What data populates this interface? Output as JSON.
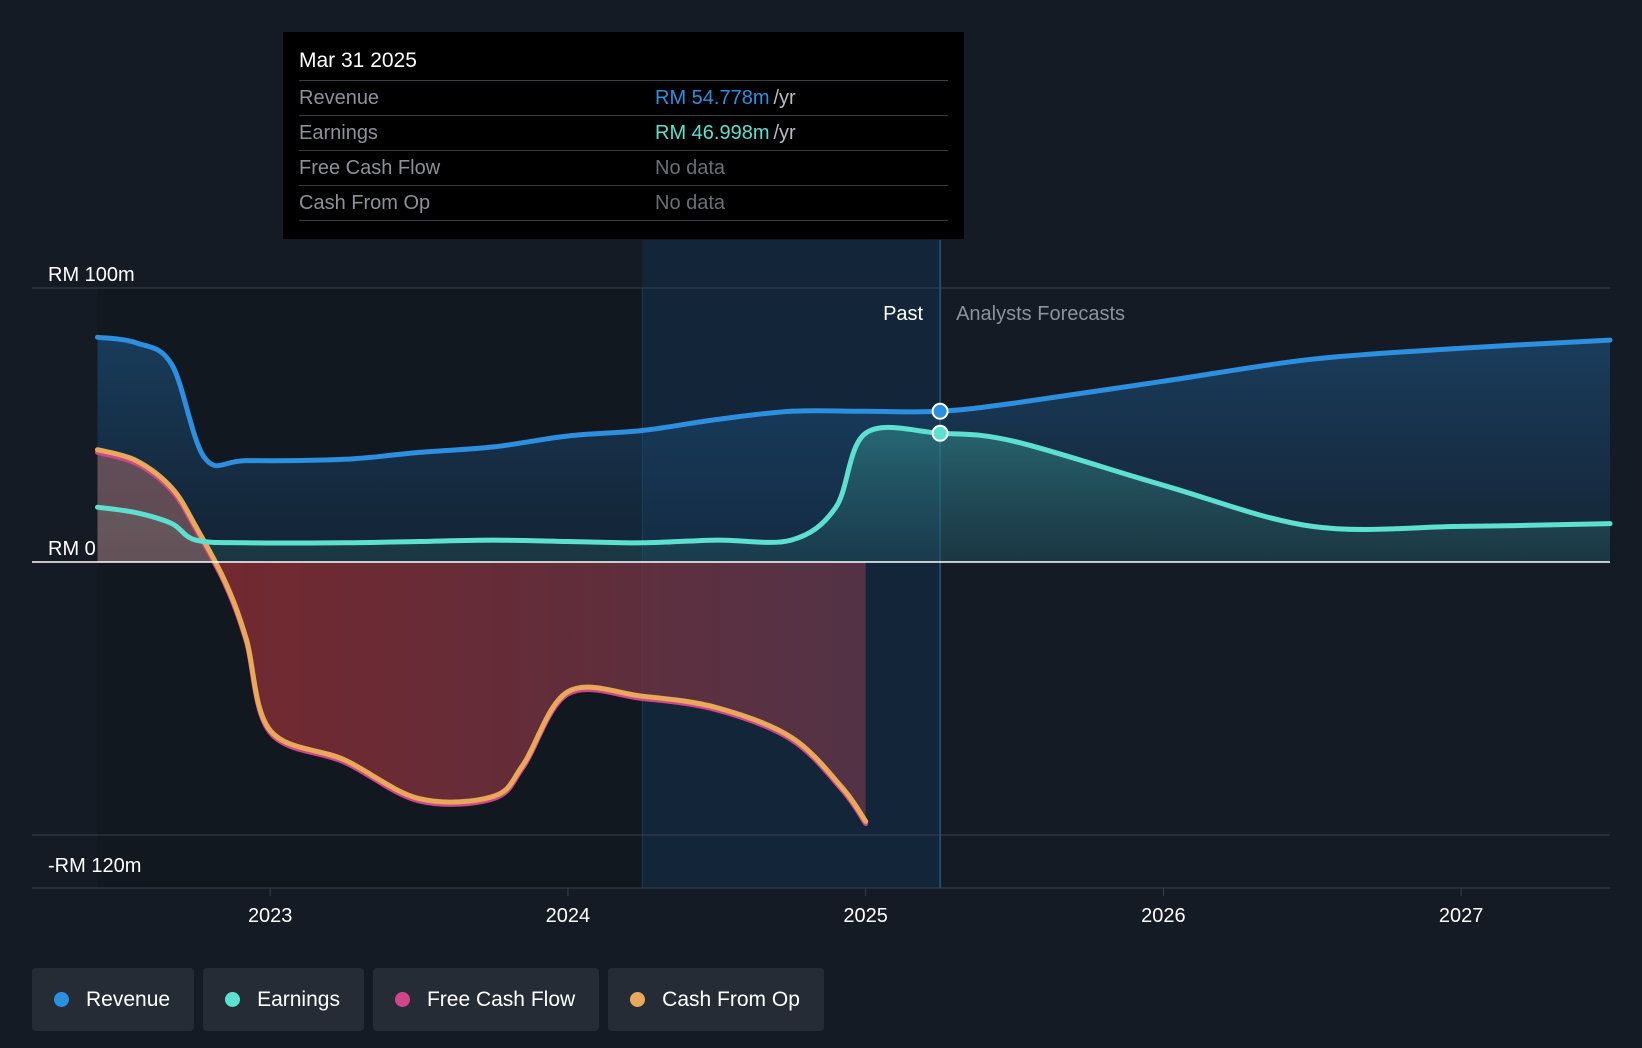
{
  "tooltip": {
    "date": "Mar 31 2025",
    "rows": [
      {
        "label": "Revenue",
        "value": "RM 54.778m",
        "unit": "/yr",
        "color": "#2d8fe0"
      },
      {
        "label": "Earnings",
        "value": "RM 46.998m",
        "unit": "/yr",
        "color": "#5de0d0"
      },
      {
        "label": "Free Cash Flow",
        "value": "No data",
        "unit": "",
        "color": "#6b6f76"
      },
      {
        "label": "Cash From Op",
        "value": "No data",
        "unit": "",
        "color": "#6b6f76"
      }
    ]
  },
  "legend": [
    {
      "label": "Revenue",
      "color": "#2d8fe0"
    },
    {
      "label": "Earnings",
      "color": "#5de0d0"
    },
    {
      "label": "Free Cash Flow",
      "color": "#d0468a"
    },
    {
      "label": "Cash From Op",
      "color": "#e8aa5a"
    }
  ],
  "chart_data": {
    "type": "area",
    "y_axis_labels": [
      "RM 100m",
      "RM 0",
      "-RM 120m"
    ],
    "x_tick_labels": [
      "2023",
      "2024",
      "2025",
      "2026",
      "2027"
    ],
    "x_ticks": [
      2023,
      2024,
      2025,
      2026,
      2027
    ],
    "xlim": [
      2022.2,
      2027.5
    ],
    "ylim": [
      -120,
      100
    ],
    "past_label": "Past",
    "forecast_label": "Analysts Forecasts",
    "past_region": [
      2024.25,
      2025.25
    ],
    "highlight_x": 2025.25,
    "series": [
      {
        "name": "Revenue",
        "color": "#2d8fe0",
        "points": [
          [
            2022.42,
            82
          ],
          [
            2022.55,
            80
          ],
          [
            2022.67,
            72
          ],
          [
            2022.78,
            38
          ],
          [
            2022.92,
            37
          ],
          [
            2023.25,
            37.5
          ],
          [
            2023.5,
            40
          ],
          [
            2023.75,
            42
          ],
          [
            2024.0,
            46
          ],
          [
            2024.25,
            48
          ],
          [
            2024.5,
            52
          ],
          [
            2024.75,
            55
          ],
          [
            2025.0,
            55
          ],
          [
            2025.25,
            55
          ],
          [
            2025.5,
            58
          ],
          [
            2026.0,
            66
          ],
          [
            2026.5,
            74
          ],
          [
            2027.0,
            78
          ],
          [
            2027.5,
            81
          ]
        ]
      },
      {
        "name": "Earnings",
        "color": "#5de0d0",
        "points": [
          [
            2022.42,
            20
          ],
          [
            2022.55,
            18
          ],
          [
            2022.67,
            14
          ],
          [
            2022.75,
            8
          ],
          [
            2022.92,
            7
          ],
          [
            2023.25,
            7
          ],
          [
            2023.5,
            7.5
          ],
          [
            2023.75,
            8
          ],
          [
            2024.0,
            7.5
          ],
          [
            2024.25,
            7
          ],
          [
            2024.5,
            8
          ],
          [
            2024.75,
            8
          ],
          [
            2024.9,
            20
          ],
          [
            2025.0,
            47
          ],
          [
            2025.25,
            47
          ],
          [
            2025.5,
            44
          ],
          [
            2026.0,
            28
          ],
          [
            2026.5,
            13
          ],
          [
            2027.0,
            13
          ],
          [
            2027.5,
            14
          ]
        ]
      },
      {
        "name": "Free Cash Flow",
        "color": "#d0468a",
        "points": [
          [
            2022.42,
            40
          ],
          [
            2022.55,
            36
          ],
          [
            2022.67,
            26
          ],
          [
            2022.75,
            12
          ],
          [
            2022.85,
            -10
          ],
          [
            2022.92,
            -35
          ],
          [
            2023.0,
            -75
          ],
          [
            2023.25,
            -88
          ],
          [
            2023.5,
            -105
          ],
          [
            2023.75,
            -104
          ],
          [
            2023.85,
            -90
          ],
          [
            2024.0,
            -58
          ],
          [
            2024.25,
            -60
          ],
          [
            2024.5,
            -65
          ],
          [
            2024.75,
            -78
          ],
          [
            2024.92,
            -100
          ],
          [
            2025.0,
            -115
          ]
        ]
      },
      {
        "name": "Cash From Op",
        "color": "#e8aa5a",
        "points": [
          [
            2022.42,
            41
          ],
          [
            2022.55,
            37
          ],
          [
            2022.67,
            27
          ],
          [
            2022.75,
            13
          ],
          [
            2022.85,
            -9
          ],
          [
            2022.92,
            -34
          ],
          [
            2023.0,
            -74
          ],
          [
            2023.25,
            -87
          ],
          [
            2023.5,
            -104
          ],
          [
            2023.75,
            -103
          ],
          [
            2023.85,
            -89
          ],
          [
            2024.0,
            -57
          ],
          [
            2024.25,
            -59
          ],
          [
            2024.5,
            -64
          ],
          [
            2024.75,
            -77
          ],
          [
            2024.92,
            -99
          ],
          [
            2025.0,
            -114
          ]
        ]
      }
    ]
  }
}
